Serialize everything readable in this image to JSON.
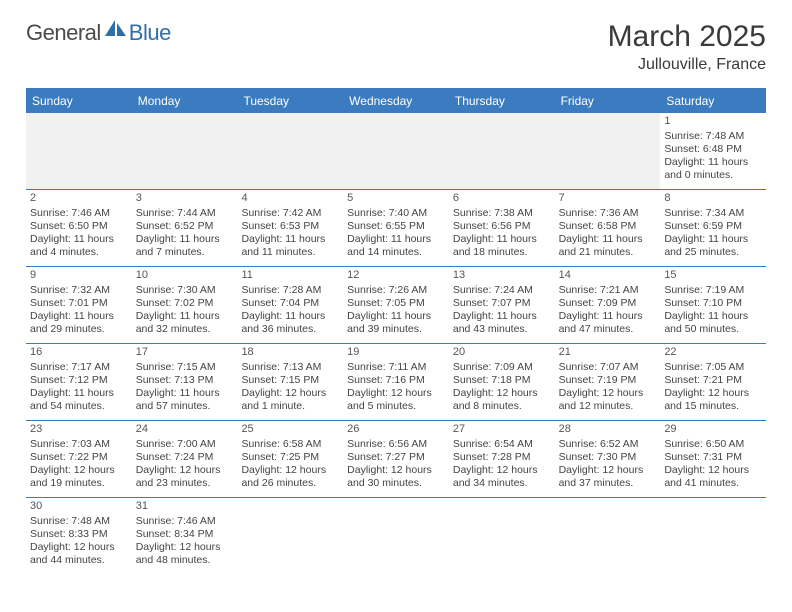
{
  "logo": {
    "part1": "General",
    "part2": "Blue"
  },
  "title": "March 2025",
  "location": "Jullouville, France",
  "dayNames": [
    "Sunday",
    "Monday",
    "Tuesday",
    "Wednesday",
    "Thursday",
    "Friday",
    "Saturday"
  ],
  "colors": {
    "header_bg": "#3b7bbf",
    "border": "#3b7bbf",
    "empty_bg": "#f1f1f1",
    "text": "#444444",
    "logo_blue": "#2f6fa8"
  },
  "weeks": [
    [
      {
        "empty": true
      },
      {
        "empty": true
      },
      {
        "empty": true
      },
      {
        "empty": true
      },
      {
        "empty": true
      },
      {
        "empty": true
      },
      {
        "day": "1",
        "sunrise": "Sunrise: 7:48 AM",
        "sunset": "Sunset: 6:48 PM",
        "daylight1": "Daylight: 11 hours",
        "daylight2": "and 0 minutes."
      }
    ],
    [
      {
        "day": "2",
        "sunrise": "Sunrise: 7:46 AM",
        "sunset": "Sunset: 6:50 PM",
        "daylight1": "Daylight: 11 hours",
        "daylight2": "and 4 minutes."
      },
      {
        "day": "3",
        "sunrise": "Sunrise: 7:44 AM",
        "sunset": "Sunset: 6:52 PM",
        "daylight1": "Daylight: 11 hours",
        "daylight2": "and 7 minutes."
      },
      {
        "day": "4",
        "sunrise": "Sunrise: 7:42 AM",
        "sunset": "Sunset: 6:53 PM",
        "daylight1": "Daylight: 11 hours",
        "daylight2": "and 11 minutes."
      },
      {
        "day": "5",
        "sunrise": "Sunrise: 7:40 AM",
        "sunset": "Sunset: 6:55 PM",
        "daylight1": "Daylight: 11 hours",
        "daylight2": "and 14 minutes."
      },
      {
        "day": "6",
        "sunrise": "Sunrise: 7:38 AM",
        "sunset": "Sunset: 6:56 PM",
        "daylight1": "Daylight: 11 hours",
        "daylight2": "and 18 minutes."
      },
      {
        "day": "7",
        "sunrise": "Sunrise: 7:36 AM",
        "sunset": "Sunset: 6:58 PM",
        "daylight1": "Daylight: 11 hours",
        "daylight2": "and 21 minutes."
      },
      {
        "day": "8",
        "sunrise": "Sunrise: 7:34 AM",
        "sunset": "Sunset: 6:59 PM",
        "daylight1": "Daylight: 11 hours",
        "daylight2": "and 25 minutes."
      }
    ],
    [
      {
        "day": "9",
        "sunrise": "Sunrise: 7:32 AM",
        "sunset": "Sunset: 7:01 PM",
        "daylight1": "Daylight: 11 hours",
        "daylight2": "and 29 minutes."
      },
      {
        "day": "10",
        "sunrise": "Sunrise: 7:30 AM",
        "sunset": "Sunset: 7:02 PM",
        "daylight1": "Daylight: 11 hours",
        "daylight2": "and 32 minutes."
      },
      {
        "day": "11",
        "sunrise": "Sunrise: 7:28 AM",
        "sunset": "Sunset: 7:04 PM",
        "daylight1": "Daylight: 11 hours",
        "daylight2": "and 36 minutes."
      },
      {
        "day": "12",
        "sunrise": "Sunrise: 7:26 AM",
        "sunset": "Sunset: 7:05 PM",
        "daylight1": "Daylight: 11 hours",
        "daylight2": "and 39 minutes."
      },
      {
        "day": "13",
        "sunrise": "Sunrise: 7:24 AM",
        "sunset": "Sunset: 7:07 PM",
        "daylight1": "Daylight: 11 hours",
        "daylight2": "and 43 minutes."
      },
      {
        "day": "14",
        "sunrise": "Sunrise: 7:21 AM",
        "sunset": "Sunset: 7:09 PM",
        "daylight1": "Daylight: 11 hours",
        "daylight2": "and 47 minutes."
      },
      {
        "day": "15",
        "sunrise": "Sunrise: 7:19 AM",
        "sunset": "Sunset: 7:10 PM",
        "daylight1": "Daylight: 11 hours",
        "daylight2": "and 50 minutes."
      }
    ],
    [
      {
        "day": "16",
        "sunrise": "Sunrise: 7:17 AM",
        "sunset": "Sunset: 7:12 PM",
        "daylight1": "Daylight: 11 hours",
        "daylight2": "and 54 minutes."
      },
      {
        "day": "17",
        "sunrise": "Sunrise: 7:15 AM",
        "sunset": "Sunset: 7:13 PM",
        "daylight1": "Daylight: 11 hours",
        "daylight2": "and 57 minutes."
      },
      {
        "day": "18",
        "sunrise": "Sunrise: 7:13 AM",
        "sunset": "Sunset: 7:15 PM",
        "daylight1": "Daylight: 12 hours",
        "daylight2": "and 1 minute."
      },
      {
        "day": "19",
        "sunrise": "Sunrise: 7:11 AM",
        "sunset": "Sunset: 7:16 PM",
        "daylight1": "Daylight: 12 hours",
        "daylight2": "and 5 minutes."
      },
      {
        "day": "20",
        "sunrise": "Sunrise: 7:09 AM",
        "sunset": "Sunset: 7:18 PM",
        "daylight1": "Daylight: 12 hours",
        "daylight2": "and 8 minutes."
      },
      {
        "day": "21",
        "sunrise": "Sunrise: 7:07 AM",
        "sunset": "Sunset: 7:19 PM",
        "daylight1": "Daylight: 12 hours",
        "daylight2": "and 12 minutes."
      },
      {
        "day": "22",
        "sunrise": "Sunrise: 7:05 AM",
        "sunset": "Sunset: 7:21 PM",
        "daylight1": "Daylight: 12 hours",
        "daylight2": "and 15 minutes."
      }
    ],
    [
      {
        "day": "23",
        "sunrise": "Sunrise: 7:03 AM",
        "sunset": "Sunset: 7:22 PM",
        "daylight1": "Daylight: 12 hours",
        "daylight2": "and 19 minutes."
      },
      {
        "day": "24",
        "sunrise": "Sunrise: 7:00 AM",
        "sunset": "Sunset: 7:24 PM",
        "daylight1": "Daylight: 12 hours",
        "daylight2": "and 23 minutes."
      },
      {
        "day": "25",
        "sunrise": "Sunrise: 6:58 AM",
        "sunset": "Sunset: 7:25 PM",
        "daylight1": "Daylight: 12 hours",
        "daylight2": "and 26 minutes."
      },
      {
        "day": "26",
        "sunrise": "Sunrise: 6:56 AM",
        "sunset": "Sunset: 7:27 PM",
        "daylight1": "Daylight: 12 hours",
        "daylight2": "and 30 minutes."
      },
      {
        "day": "27",
        "sunrise": "Sunrise: 6:54 AM",
        "sunset": "Sunset: 7:28 PM",
        "daylight1": "Daylight: 12 hours",
        "daylight2": "and 34 minutes."
      },
      {
        "day": "28",
        "sunrise": "Sunrise: 6:52 AM",
        "sunset": "Sunset: 7:30 PM",
        "daylight1": "Daylight: 12 hours",
        "daylight2": "and 37 minutes."
      },
      {
        "day": "29",
        "sunrise": "Sunrise: 6:50 AM",
        "sunset": "Sunset: 7:31 PM",
        "daylight1": "Daylight: 12 hours",
        "daylight2": "and 41 minutes."
      }
    ],
    [
      {
        "day": "30",
        "sunrise": "Sunrise: 7:48 AM",
        "sunset": "Sunset: 8:33 PM",
        "daylight1": "Daylight: 12 hours",
        "daylight2": "and 44 minutes."
      },
      {
        "day": "31",
        "sunrise": "Sunrise: 7:46 AM",
        "sunset": "Sunset: 8:34 PM",
        "daylight1": "Daylight: 12 hours",
        "daylight2": "and 48 minutes."
      },
      {
        "empty": true,
        "blank": true
      },
      {
        "empty": true,
        "blank": true
      },
      {
        "empty": true,
        "blank": true
      },
      {
        "empty": true,
        "blank": true
      },
      {
        "empty": true,
        "blank": true
      }
    ]
  ]
}
